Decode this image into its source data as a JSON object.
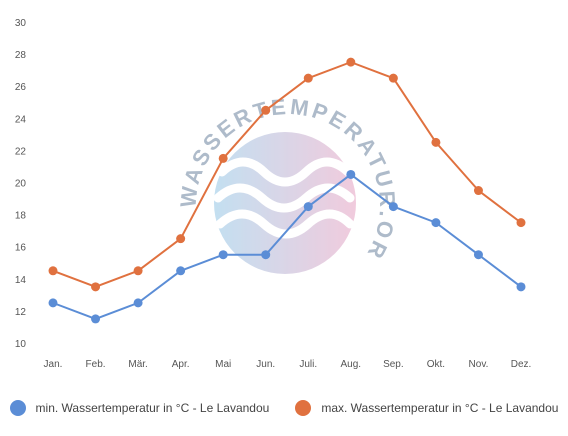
{
  "chart_data": {
    "type": "line",
    "categories": [
      "Jan.",
      "Feb.",
      "Mär.",
      "Apr.",
      "Mai",
      "Jun.",
      "Juli.",
      "Aug.",
      "Sep.",
      "Okt.",
      "Nov.",
      "Dez."
    ],
    "series": [
      {
        "name": "min. Wassertemperatur in °C - Le Lavandou",
        "color": "#5b8dd6",
        "values": [
          12.5,
          11.5,
          12.5,
          14.5,
          15.5,
          15.5,
          18.5,
          20.5,
          18.5,
          17.5,
          15.5,
          13.5
        ]
      },
      {
        "name": "max. Wassertemperatur in °C - Le Lavandou",
        "color": "#e0713f",
        "values": [
          14.5,
          13.5,
          14.5,
          16.5,
          21.5,
          24.5,
          26.5,
          27.5,
          26.5,
          22.5,
          19.5,
          17.5
        ]
      }
    ],
    "ylim": [
      10,
      30
    ],
    "yticks": [
      10,
      12,
      14,
      16,
      18,
      20,
      22,
      24,
      26,
      28,
      30
    ],
    "grid": false,
    "legend_position": "bottom"
  },
  "watermark": {
    "text": "WASSERTEMPERATUR.ORG",
    "colors": [
      "#9ccbe8",
      "#e8a9c7"
    ]
  }
}
